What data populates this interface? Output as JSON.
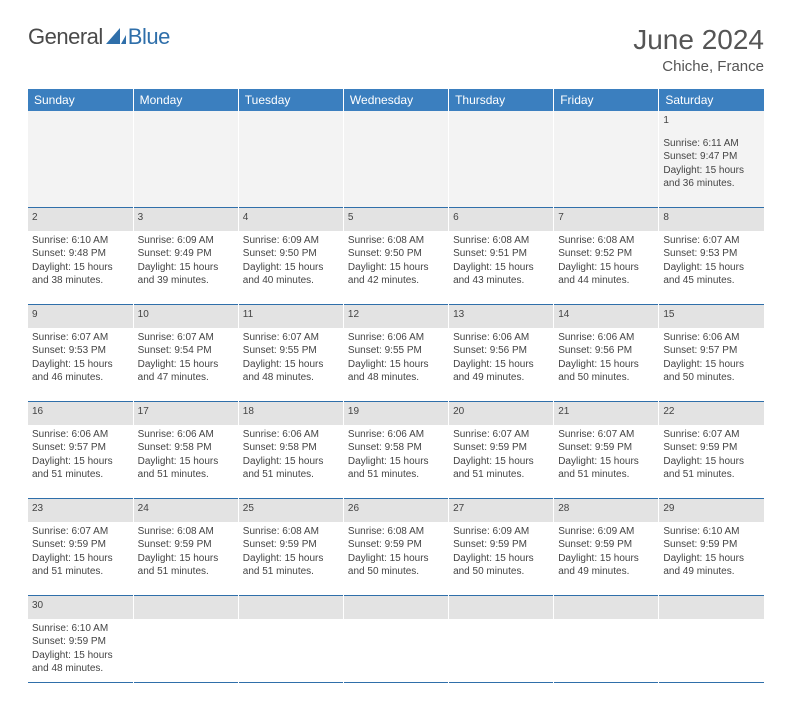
{
  "logo": {
    "t1": "General",
    "t2": "Blue",
    "shape_color": "#2f6faa"
  },
  "header": {
    "title": "June 2024",
    "location": "Chiche, France"
  },
  "colors": {
    "header_bg": "#3b7fbf",
    "header_fg": "#ffffff",
    "daynum_bg": "#e3e3e3",
    "row_divider": "#2f6faa",
    "first_week_bg": "#f3f3f3"
  },
  "weekday_headers": [
    "Sunday",
    "Monday",
    "Tuesday",
    "Wednesday",
    "Thursday",
    "Friday",
    "Saturday"
  ],
  "weeks": [
    {
      "nums": [
        "",
        "",
        "",
        "",
        "",
        "",
        "1"
      ],
      "cells": [
        "",
        "",
        "",
        "",
        "",
        "",
        "Sunrise: 6:11 AM\nSunset: 9:47 PM\nDaylight: 15 hours and 36 minutes."
      ]
    },
    {
      "nums": [
        "2",
        "3",
        "4",
        "5",
        "6",
        "7",
        "8"
      ],
      "cells": [
        "Sunrise: 6:10 AM\nSunset: 9:48 PM\nDaylight: 15 hours and 38 minutes.",
        "Sunrise: 6:09 AM\nSunset: 9:49 PM\nDaylight: 15 hours and 39 minutes.",
        "Sunrise: 6:09 AM\nSunset: 9:50 PM\nDaylight: 15 hours and 40 minutes.",
        "Sunrise: 6:08 AM\nSunset: 9:50 PM\nDaylight: 15 hours and 42 minutes.",
        "Sunrise: 6:08 AM\nSunset: 9:51 PM\nDaylight: 15 hours and 43 minutes.",
        "Sunrise: 6:08 AM\nSunset: 9:52 PM\nDaylight: 15 hours and 44 minutes.",
        "Sunrise: 6:07 AM\nSunset: 9:53 PM\nDaylight: 15 hours and 45 minutes."
      ]
    },
    {
      "nums": [
        "9",
        "10",
        "11",
        "12",
        "13",
        "14",
        "15"
      ],
      "cells": [
        "Sunrise: 6:07 AM\nSunset: 9:53 PM\nDaylight: 15 hours and 46 minutes.",
        "Sunrise: 6:07 AM\nSunset: 9:54 PM\nDaylight: 15 hours and 47 minutes.",
        "Sunrise: 6:07 AM\nSunset: 9:55 PM\nDaylight: 15 hours and 48 minutes.",
        "Sunrise: 6:06 AM\nSunset: 9:55 PM\nDaylight: 15 hours and 48 minutes.",
        "Sunrise: 6:06 AM\nSunset: 9:56 PM\nDaylight: 15 hours and 49 minutes.",
        "Sunrise: 6:06 AM\nSunset: 9:56 PM\nDaylight: 15 hours and 50 minutes.",
        "Sunrise: 6:06 AM\nSunset: 9:57 PM\nDaylight: 15 hours and 50 minutes."
      ]
    },
    {
      "nums": [
        "16",
        "17",
        "18",
        "19",
        "20",
        "21",
        "22"
      ],
      "cells": [
        "Sunrise: 6:06 AM\nSunset: 9:57 PM\nDaylight: 15 hours and 51 minutes.",
        "Sunrise: 6:06 AM\nSunset: 9:58 PM\nDaylight: 15 hours and 51 minutes.",
        "Sunrise: 6:06 AM\nSunset: 9:58 PM\nDaylight: 15 hours and 51 minutes.",
        "Sunrise: 6:06 AM\nSunset: 9:58 PM\nDaylight: 15 hours and 51 minutes.",
        "Sunrise: 6:07 AM\nSunset: 9:59 PM\nDaylight: 15 hours and 51 minutes.",
        "Sunrise: 6:07 AM\nSunset: 9:59 PM\nDaylight: 15 hours and 51 minutes.",
        "Sunrise: 6:07 AM\nSunset: 9:59 PM\nDaylight: 15 hours and 51 minutes."
      ]
    },
    {
      "nums": [
        "23",
        "24",
        "25",
        "26",
        "27",
        "28",
        "29"
      ],
      "cells": [
        "Sunrise: 6:07 AM\nSunset: 9:59 PM\nDaylight: 15 hours and 51 minutes.",
        "Sunrise: 6:08 AM\nSunset: 9:59 PM\nDaylight: 15 hours and 51 minutes.",
        "Sunrise: 6:08 AM\nSunset: 9:59 PM\nDaylight: 15 hours and 51 minutes.",
        "Sunrise: 6:08 AM\nSunset: 9:59 PM\nDaylight: 15 hours and 50 minutes.",
        "Sunrise: 6:09 AM\nSunset: 9:59 PM\nDaylight: 15 hours and 50 minutes.",
        "Sunrise: 6:09 AM\nSunset: 9:59 PM\nDaylight: 15 hours and 49 minutes.",
        "Sunrise: 6:10 AM\nSunset: 9:59 PM\nDaylight: 15 hours and 49 minutes."
      ]
    },
    {
      "nums": [
        "30",
        "",
        "",
        "",
        "",
        "",
        ""
      ],
      "cells": [
        "Sunrise: 6:10 AM\nSunset: 9:59 PM\nDaylight: 15 hours and 48 minutes.",
        "",
        "",
        "",
        "",
        "",
        ""
      ]
    }
  ]
}
